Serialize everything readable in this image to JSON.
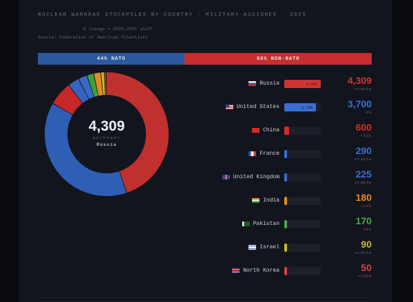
{
  "header": {
    "title": "NUCLEAR WARHEAD STOCKPILES BY COUNTRY · MILITARY ASSIGNED · 2025",
    "subtitle": "% change = 2020–2025 shift",
    "source": "Source: Federation of American Scientists"
  },
  "alliance_split": {
    "nato": {
      "label": "44% NATO",
      "percent": 44,
      "color": "#2c5aa0"
    },
    "non_nato": {
      "label": "56% NON-NATO",
      "percent": 56,
      "color": "#c62f2f"
    }
  },
  "donut_center": {
    "value": "4,309",
    "unit": "warheads",
    "country": "Russia"
  },
  "countries": [
    {
      "name": "Russia",
      "flag": "russia-flag",
      "value": "4,309",
      "bar_label": "4,309",
      "change": "stable",
      "color": "#d03434",
      "change_color": "#6a6f7b"
    },
    {
      "name": "United States",
      "flag": "us-flag",
      "value": "3,700",
      "bar_label": "3,700",
      "change": "-3%",
      "color": "#3a6fd1",
      "change_color": "#6a6f7b"
    },
    {
      "name": "China",
      "flag": "china-flag",
      "value": "600",
      "bar_label": "",
      "change": "+72%",
      "color": "#d82a2a",
      "change_color": "#b8464a"
    },
    {
      "name": "France",
      "flag": "france-flag",
      "value": "290",
      "bar_label": "",
      "change": "stable",
      "color": "#3a6fd1",
      "change_color": "#6a6f7b"
    },
    {
      "name": "United Kingdom",
      "flag": "uk-flag",
      "value": "225",
      "bar_label": "",
      "change": "stable",
      "color": "#3a6fd1",
      "change_color": "#6a6f7b"
    },
    {
      "name": "India",
      "flag": "india-flag",
      "value": "180",
      "bar_label": "",
      "change": "+10%",
      "color": "#e8892a",
      "change_color": "#b8464a"
    },
    {
      "name": "Pakistan",
      "flag": "pakistan-flag",
      "value": "170",
      "bar_label": "",
      "change": "+6%",
      "color": "#4aab45",
      "change_color": "#b8464a"
    },
    {
      "name": "Israel",
      "flag": "israel-flag",
      "value": "90",
      "bar_label": "",
      "change": "stable",
      "color": "#c8b92e",
      "change_color": "#6a6f7b"
    },
    {
      "name": "North Korea",
      "flag": "north-korea-flag",
      "value": "50",
      "bar_label": "",
      "change": "+233%",
      "color": "#d84040",
      "change_color": "#b8464a"
    }
  ],
  "chart_data": {
    "type": "pie",
    "title": "NUCLEAR WARHEAD STOCKPILES BY COUNTRY · MILITARY ASSIGNED · 2025",
    "subtitle": "% change = 2020–2025 shift",
    "source": "Source: Federation of American Scientists",
    "categories": [
      "Russia",
      "United States",
      "China",
      "France",
      "United Kingdom",
      "India",
      "Pakistan",
      "Israel",
      "North Korea"
    ],
    "values": [
      4309,
      3700,
      600,
      290,
      225,
      180,
      170,
      90,
      50
    ],
    "change_2020_2025": [
      "stable",
      "-3%",
      "+72%",
      "stable",
      "stable",
      "+10%",
      "+6%",
      "stable",
      "+233%"
    ],
    "donut_order_clockwise": [
      "Russia",
      "United States",
      "China",
      "France",
      "United Kingdom",
      "Pakistan",
      "India",
      "Israel",
      "North Korea"
    ],
    "center_label": {
      "value": "4,309",
      "unit": "warheads",
      "country": "Russia"
    },
    "alliance_split": {
      "NATO": 44,
      "NON-NATO": 56
    }
  }
}
